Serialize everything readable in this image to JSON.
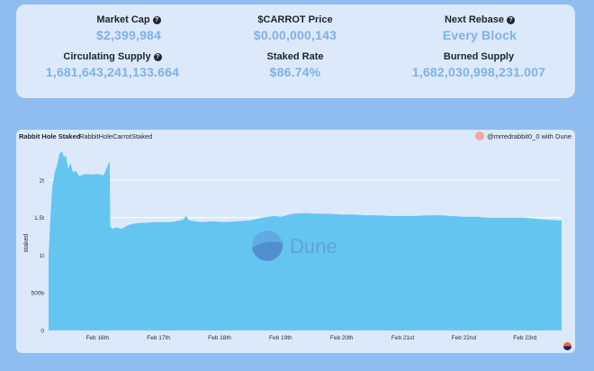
{
  "stats": {
    "market_cap": {
      "label": "Market Cap",
      "value": "$2,399,984",
      "help": "?"
    },
    "carrot_price": {
      "label": "$CARROT Price",
      "value": "$0.00,000,143"
    },
    "next_rebase": {
      "label": "Next Rebase",
      "value": "Every Block",
      "help": "?"
    },
    "circulating_supply": {
      "label": "Circulating Supply",
      "value": "1,681,643,241,133.664",
      "help": "?"
    },
    "staked_rate": {
      "label": "Staked Rate",
      "value": "$86.74%"
    },
    "burned_supply": {
      "label": "Burned Supply",
      "value": "1,682,030,998,231.007"
    }
  },
  "chart": {
    "title": "Rabbit Hole Staked",
    "subtitle": "RabbitHoleCarrotStaked",
    "author": "@mrredrabbit0_0 with Dune",
    "watermark": "Dune",
    "colors": {
      "fill": "#64c5f0",
      "axis_text": "#2a2f3a",
      "grid": "#ffffff",
      "card": "#dbe9fa"
    }
  },
  "chart_data": {
    "type": "area",
    "ylabel": "staked",
    "xlabel": "",
    "ylim": [
      0,
      2500000000000
    ],
    "yticks": [
      {
        "value": 0,
        "label": "0"
      },
      {
        "value": 500000000000,
        "label": "500b"
      },
      {
        "value": 1000000000000,
        "label": "1t"
      },
      {
        "value": 1500000000000,
        "label": "1.5t"
      },
      {
        "value": 2000000000000,
        "label": "2t"
      }
    ],
    "xlim": [
      15.2,
      23.6
    ],
    "xticks": [
      {
        "value": 16,
        "label": "Feb 16th"
      },
      {
        "value": 17,
        "label": "Feb 17th"
      },
      {
        "value": 18,
        "label": "Feb 18th"
      },
      {
        "value": 19,
        "label": "Feb 19th"
      },
      {
        "value": 20,
        "label": "Feb 20th"
      },
      {
        "value": 21,
        "label": "Feb 21st"
      },
      {
        "value": 22,
        "label": "Feb 22nd"
      },
      {
        "value": 23,
        "label": "Feb 23rd"
      }
    ],
    "series": [
      {
        "x": [
          15.2,
          15.23,
          15.26,
          15.3,
          15.34,
          15.38,
          15.42,
          15.45,
          15.48,
          15.52,
          15.56,
          15.6,
          15.65,
          15.7,
          15.8,
          15.9,
          16.0,
          16.1,
          16.2,
          16.21,
          16.25,
          16.3,
          16.4,
          16.5,
          16.6,
          16.7,
          16.8,
          16.9,
          17.0,
          17.2,
          17.4,
          17.45,
          17.5,
          17.7,
          17.9,
          18.1,
          18.3,
          18.5,
          18.7,
          18.9,
          19.0,
          19.2,
          19.4,
          19.6,
          19.8,
          20.0,
          20.2,
          20.4,
          20.6,
          20.8,
          21.0,
          21.2,
          21.4,
          21.6,
          21.8,
          22.0,
          22.2,
          22.4,
          22.6,
          22.8,
          23.0,
          23.2,
          23.4,
          23.6
        ],
        "y": [
          1000000000000.0,
          1500000000000.0,
          1900000000000.0,
          2100000000000.0,
          2200000000000.0,
          2350000000000.0,
          2380000000000.0,
          2300000000000.0,
          2330000000000.0,
          2150000000000.0,
          2220000000000.0,
          2100000000000.0,
          2120000000000.0,
          2050000000000.0,
          2080000000000.0,
          2070000000000.0,
          2080000000000.0,
          2060000000000.0,
          2250000000000.0,
          1380000000000.0,
          1350000000000.0,
          1370000000000.0,
          1350000000000.0,
          1400000000000.0,
          1420000000000.0,
          1430000000000.0,
          1430000000000.0,
          1440000000000.0,
          1440000000000.0,
          1440000000000.0,
          1470000000000.0,
          1520000000000.0,
          1460000000000.0,
          1440000000000.0,
          1450000000000.0,
          1440000000000.0,
          1450000000000.0,
          1460000000000.0,
          1500000000000.0,
          1520000000000.0,
          1510000000000.0,
          1550000000000.0,
          1560000000000.0,
          1550000000000.0,
          1550000000000.0,
          1540000000000.0,
          1540000000000.0,
          1530000000000.0,
          1530000000000.0,
          1520000000000.0,
          1520000000000.0,
          1520000000000.0,
          1530000000000.0,
          1530000000000.0,
          1520000000000.0,
          1510000000000.0,
          1510000000000.0,
          1500000000000.0,
          1500000000000.0,
          1500000000000.0,
          1500000000000.0,
          1480000000000.0,
          1470000000000.0,
          1460000000000.0
        ]
      }
    ]
  }
}
